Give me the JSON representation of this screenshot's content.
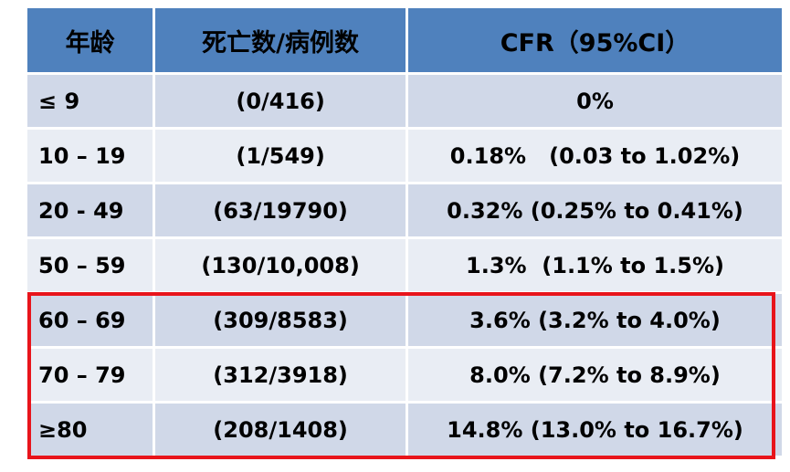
{
  "table": {
    "headers": {
      "age": "年龄",
      "deaths_cases": "死亡数/病例数",
      "cfr": "CFR（95%CI）"
    },
    "rows": [
      {
        "age": "≤ 9",
        "deaths_cases": "(0/416)",
        "cfr": "0%"
      },
      {
        "age": "10 – 19",
        "deaths_cases": "(1/549)",
        "cfr": "0.18%   (0.03 to 1.02%)"
      },
      {
        "age": "20 - 49",
        "deaths_cases": "(63/19790)",
        "cfr": "0.32% (0.25% to 0.41%)"
      },
      {
        "age": "50 – 59",
        "deaths_cases": "(130/10,008)",
        "cfr": "1.3%  (1.1% to 1.5%)"
      },
      {
        "age": "60 – 69",
        "deaths_cases": "(309/8583)",
        "cfr": "3.6% (3.2% to 4.0%)"
      },
      {
        "age": "70 – 79",
        "deaths_cases": "(312/3918)",
        "cfr": "8.0% (7.2% to 8.9%)"
      },
      {
        "age": "≥80",
        "deaths_cases": "(208/1408)",
        "cfr": "14.8% (13.0% to 16.7%)"
      }
    ]
  },
  "colors": {
    "header_bg": "#4f81bd",
    "row_odd": "#d0d8e8",
    "row_even": "#e9edf4",
    "highlight_border": "#e8141b"
  }
}
